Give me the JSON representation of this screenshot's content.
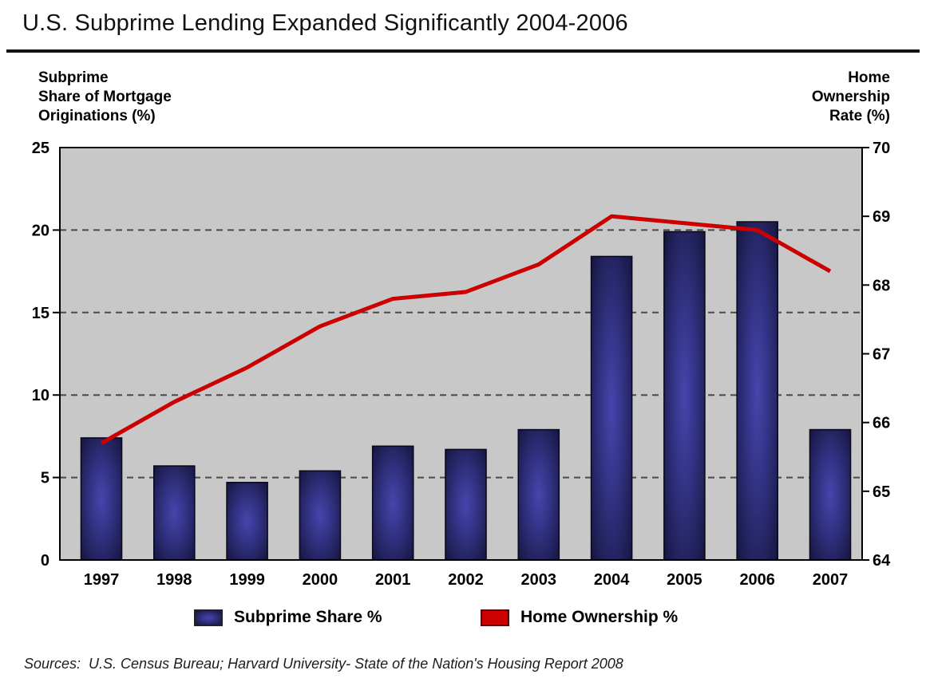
{
  "page": {
    "title": "U.S. Subprime Lending Expanded Significantly 2004-2006",
    "sources": "Sources:  U.S. Census Bureau; Harvard University- State of the Nation's Housing Report 2008"
  },
  "legend": {
    "items": [
      {
        "label": "Subprime Share %",
        "swatch": "navy-bar-swatch"
      },
      {
        "label": "Home Ownership %",
        "swatch": "red-line-swatch"
      }
    ]
  },
  "colors": {
    "plot_background": "#c8c8c8",
    "plot_border": "#000000",
    "bar_center": "#4646ad",
    "bar_mid": "#30307f",
    "bar_edge": "#15153d",
    "bar_border": "#0a0a1e",
    "line_red": "#cc0000",
    "gridline": "#4a4a4a",
    "tick": "#000000",
    "text": "#000000",
    "title_rule": "#111111"
  },
  "chart_data": {
    "type": "bar",
    "title": "U.S. Subprime Lending Expanded Significantly 2004-2006",
    "categories": [
      "1997",
      "1998",
      "1999",
      "2000",
      "2001",
      "2002",
      "2003",
      "2004",
      "2005",
      "2006",
      "2007"
    ],
    "series": [
      {
        "name": "Subprime Share %",
        "type": "bar",
        "axis": "left",
        "values": [
          7.4,
          5.7,
          4.7,
          5.4,
          6.9,
          6.7,
          7.9,
          18.4,
          19.9,
          20.5,
          7.9
        ]
      },
      {
        "name": "Home Ownership %",
        "type": "line",
        "axis": "right",
        "values": [
          65.7,
          66.3,
          66.8,
          67.4,
          67.8,
          67.9,
          68.3,
          69.0,
          68.9,
          68.8,
          68.2
        ]
      }
    ],
    "left_axis": {
      "label": "Subprime\nShare of Mortgage\nOriginations (%)",
      "min": 0,
      "max": 25,
      "ticks": [
        0,
        5,
        10,
        15,
        20,
        25
      ]
    },
    "right_axis": {
      "label": "Home\nOwnership\nRate (%)",
      "min": 64,
      "max": 70,
      "ticks": [
        64,
        65,
        66,
        67,
        68,
        69,
        70
      ]
    },
    "gridlines": {
      "style": "dashed",
      "left_axis_values": [
        5,
        10,
        15,
        20
      ]
    },
    "legend_position": "bottom",
    "plot_background": "gray"
  }
}
